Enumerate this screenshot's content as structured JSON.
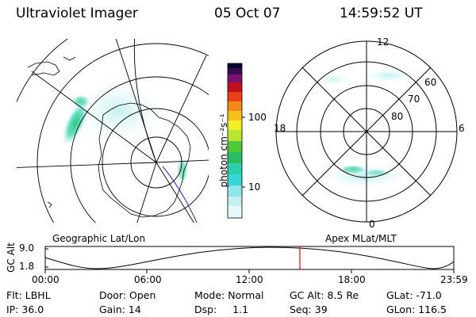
{
  "header": {
    "title": "Ultraviolet Imager",
    "date": "05 Oct 07",
    "time": "14:59:52 UT"
  },
  "colorbar": {
    "unit_label": "photon cm⁻²s⁻¹",
    "ticks": [
      "100",
      "10"
    ]
  },
  "geo_map": {
    "label": "Geographic Lat/Lon"
  },
  "polar_plot": {
    "label": "Apex MLat/MLT",
    "mlt_labels": {
      "top": "12",
      "left": "18",
      "right": "6",
      "bottom": "0"
    },
    "lat_labels": [
      "60",
      "70",
      "80"
    ]
  },
  "altitude_strip": {
    "axis_label": "GC Alt",
    "ymax": "9.0",
    "ymin": "1.8",
    "time_ticks": [
      "00:00",
      "06:00",
      "12:00",
      "18:00",
      "23:59"
    ],
    "marker_color": "#ff0000"
  },
  "info": {
    "filter": "Flt: LBHL",
    "ip": "IP: 36.0",
    "door": "Door: Open",
    "gain": "Gain: 14",
    "mode": "Mode: Normal",
    "dsp": "Dsp:     1.1",
    "gc_alt": "GC Alt: 8.5 Re",
    "seq": "Seq: 39",
    "glat": "GLat: -71.0",
    "glon": "GLon: 116.5"
  }
}
